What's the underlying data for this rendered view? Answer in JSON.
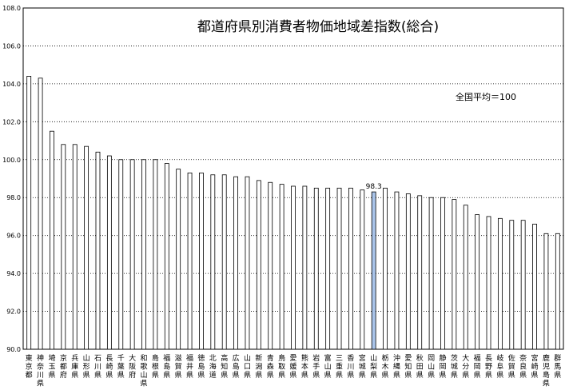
{
  "chart_data": {
    "type": "bar",
    "title": "都道府県別消費者物価地域差指数(総合)",
    "annotation": "全国平均＝100",
    "ylim": [
      90.0,
      108.0
    ],
    "y_ticks": [
      "108.0",
      "106.0",
      "104.0",
      "102.0",
      "100.0",
      "98.0",
      "96.0",
      "94.0",
      "92.0",
      "90.0"
    ],
    "grid": true,
    "bar_color": "#ffffff",
    "highlight_color": "#a9c4ea",
    "highlight_index": 30,
    "highlight_label": "98.3",
    "categories": [
      "東京都",
      "神奈川県",
      "埼玉県",
      "京都府",
      "兵庫県",
      "山形県",
      "石川県",
      "長崎県",
      "千葉県",
      "大阪府",
      "和歌山県",
      "島根県",
      "福島県",
      "滋賀県",
      "福井県",
      "徳島県",
      "北海道",
      "高知県",
      "広島県",
      "山口県",
      "新潟県",
      "青森県",
      "鳥取県",
      "愛媛県",
      "熊本県",
      "岩手県",
      "富山県",
      "三重県",
      "香川県",
      "宮城県",
      "山梨県",
      "栃木県",
      "沖縄県",
      "愛知県",
      "秋田県",
      "岡山県",
      "静岡県",
      "茨城県",
      "大分県",
      "福岡県",
      "長野県",
      "岐阜県",
      "佐賀県",
      "奈良県",
      "宮崎県",
      "鹿児島県",
      "群馬県"
    ],
    "values": [
      104.4,
      104.3,
      101.5,
      100.8,
      100.8,
      100.7,
      100.4,
      100.2,
      100.0,
      100.0,
      100.0,
      100.0,
      99.8,
      99.5,
      99.3,
      99.3,
      99.2,
      99.2,
      99.1,
      99.1,
      98.9,
      98.8,
      98.7,
      98.6,
      98.6,
      98.5,
      98.5,
      98.5,
      98.5,
      98.4,
      98.3,
      98.5,
      98.3,
      98.2,
      98.1,
      98.0,
      98.0,
      97.9,
      97.6,
      97.1,
      97.0,
      96.9,
      96.8,
      96.8,
      96.6,
      96.1,
      96.1
    ]
  }
}
